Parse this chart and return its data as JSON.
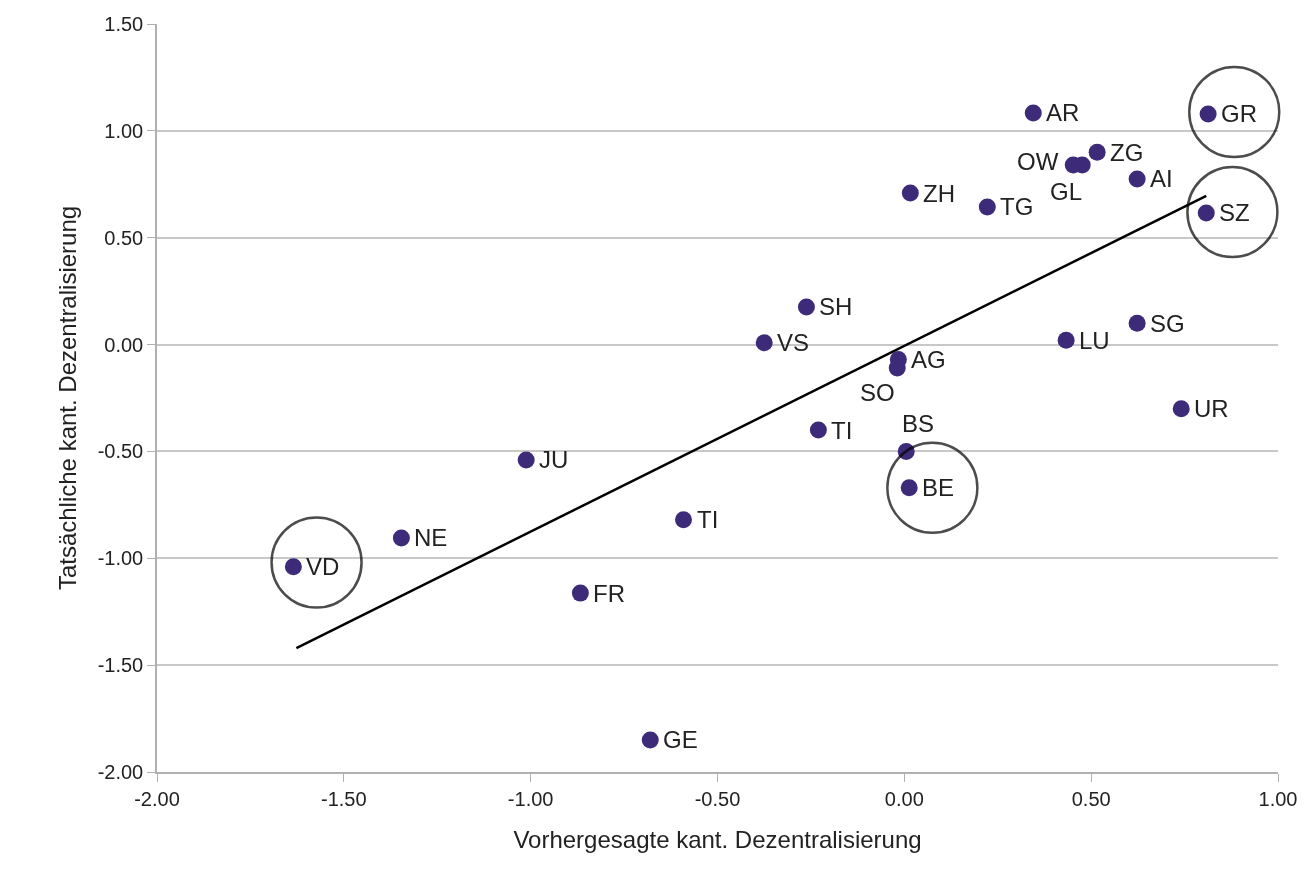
{
  "chart_data": {
    "type": "scatter",
    "xlabel": "Vorhergesagte kant. Dezentralisierung",
    "ylabel": "Tatsächliche kant. Dezentralisierung",
    "xlim": [
      -2.0,
      1.0
    ],
    "xticks": [
      {
        "value": -2,
        "label": "-2.00"
      },
      {
        "value": -1.5,
        "label": "-1.50"
      },
      {
        "value": -1,
        "label": "-1.00"
      },
      {
        "value": -0.5,
        "label": "-0.50"
      },
      {
        "value": 0,
        "label": "0.00"
      },
      {
        "value": 0.5,
        "label": "0.50"
      },
      {
        "value": 1,
        "label": "1.00"
      }
    ],
    "ylim": [
      -2.0,
      1.5
    ],
    "yticks": [
      {
        "value": -2,
        "label": "-2.00"
      },
      {
        "value": -1.5,
        "label": "-1.50"
      },
      {
        "value": -1,
        "label": "-1.00"
      },
      {
        "value": -0.5,
        "label": "-0.50"
      },
      {
        "value": 0,
        "label": "0.00"
      },
      {
        "value": 0.5,
        "label": "0.50"
      },
      {
        "value": 1,
        "label": "1.00"
      },
      {
        "value": 1.5,
        "label": "1.50"
      }
    ],
    "grid": "y",
    "series": [
      {
        "marker": "circle",
        "color": "#3d2a78",
        "x": [
          0.345,
          0.813,
          0.452,
          0.516,
          0.476,
          0.623,
          0.016,
          0.222,
          0.808,
          -0.262,
          -0.375,
          0.433,
          0.623,
          -0.016,
          -0.019,
          0.741,
          -0.23,
          0.005,
          -1.012,
          0.013,
          -0.591,
          -1.346,
          -1.635,
          -0.867,
          -0.68
        ],
        "values": [
          1.084,
          1.079,
          0.84,
          0.9,
          0.84,
          0.775,
          0.709,
          0.644,
          0.616,
          0.176,
          0.008,
          0.02,
          0.1,
          -0.07,
          -0.11,
          -0.3,
          -0.4,
          -0.5,
          -0.54,
          -0.67,
          -0.82,
          -0.905,
          -1.04,
          -1.163,
          -1.85
        ]
      },
      {
        "type": "line",
        "marker": "none",
        "color": "#000000",
        "x": [
          -1.627,
          0.808
        ],
        "values": [
          -1.42,
          0.696
        ]
      },
      {
        "type": "bubble",
        "color": "#000000",
        "x": [
          0.883,
          0.878,
          0.075,
          -1.573
        ],
        "values": [
          1.088,
          0.62,
          -0.67,
          -1.02
        ],
        "sizes": [
          1,
          1,
          1,
          1
        ]
      }
    ],
    "annotations": [
      {
        "text": "AR",
        "x": 0.345,
        "y": 1.084
      },
      {
        "text": "GR",
        "x": 0.813,
        "y": 1.079
      },
      {
        "text": "OW",
        "x": 0.452,
        "y": 0.84
      },
      {
        "text": "ZG",
        "x": 0.516,
        "y": 0.9
      },
      {
        "text": "GL",
        "x": 0.476,
        "y": 0.84
      },
      {
        "text": "AI",
        "x": 0.623,
        "y": 0.775
      },
      {
        "text": "ZH",
        "x": 0.016,
        "y": 0.709
      },
      {
        "text": "TG",
        "x": 0.222,
        "y": 0.644
      },
      {
        "text": "SZ",
        "x": 0.808,
        "y": 0.616
      },
      {
        "text": "SH",
        "x": -0.262,
        "y": 0.176
      },
      {
        "text": "VS",
        "x": -0.375,
        "y": 0.008
      },
      {
        "text": "LU",
        "x": 0.433,
        "y": 0.02
      },
      {
        "text": "SG",
        "x": 0.623,
        "y": 0.1
      },
      {
        "text": "AG",
        "x": -0.016,
        "y": -0.07
      },
      {
        "text": "SO",
        "x": -0.019,
        "y": -0.11
      },
      {
        "text": "UR",
        "x": 0.741,
        "y": -0.3
      },
      {
        "text": "TI",
        "x": -0.23,
        "y": -0.4
      },
      {
        "text": "BS",
        "x": 0.005,
        "y": -0.5
      },
      {
        "text": "JU",
        "x": -1.012,
        "y": -0.54
      },
      {
        "text": "BE",
        "x": 0.013,
        "y": -0.67
      },
      {
        "text": "TI",
        "x": -0.591,
        "y": -0.82
      },
      {
        "text": "NE",
        "x": -1.346,
        "y": -0.905
      },
      {
        "text": "VD",
        "x": -1.635,
        "y": -1.04
      },
      {
        "text": "FR",
        "x": -0.867,
        "y": -1.163
      },
      {
        "text": "GE",
        "x": -0.68,
        "y": -1.85
      }
    ]
  }
}
